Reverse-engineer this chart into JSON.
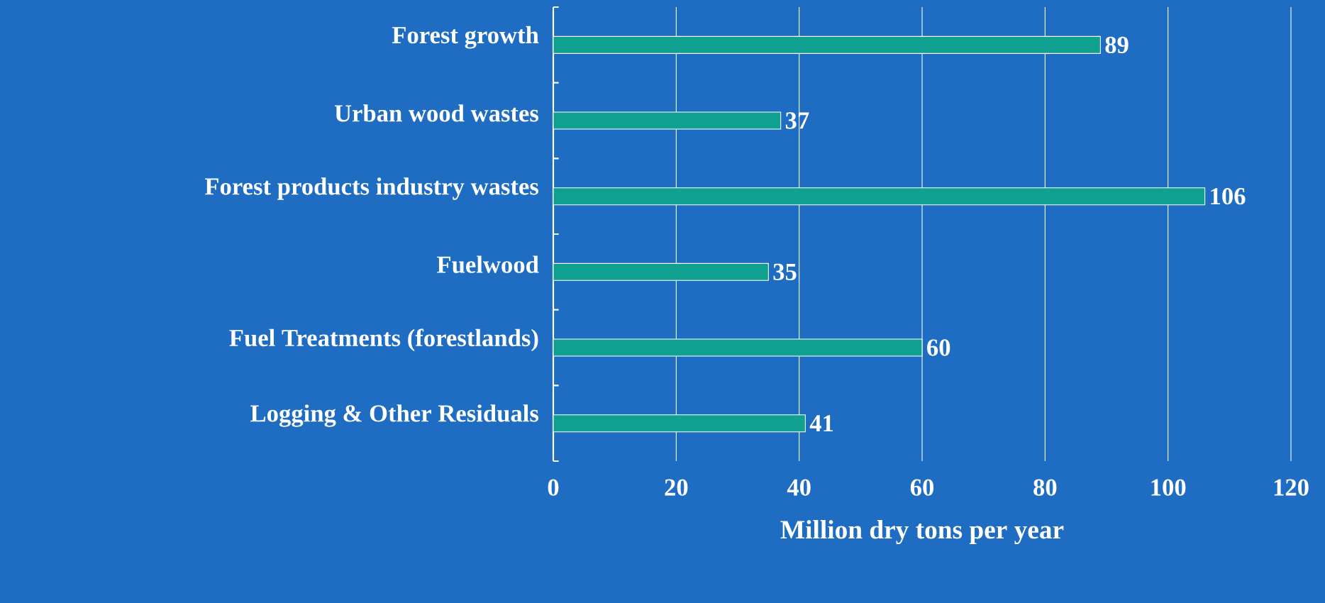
{
  "chart_data": {
    "type": "bar",
    "orientation": "horizontal",
    "categories": [
      "Forest growth",
      "Urban wood wastes",
      "Forest products industry wastes",
      "Fuelwood",
      "Fuel Treatments (forestlands)",
      "Logging & Other Residuals"
    ],
    "values": [
      89,
      37,
      106,
      35,
      60,
      41
    ],
    "color": "#10a090",
    "xlabel": "Million dry tons per year",
    "xlim": [
      0,
      120
    ],
    "xticks": [
      0,
      20,
      40,
      60,
      80,
      100,
      120
    ],
    "grid": "x",
    "data_labels": true
  }
}
